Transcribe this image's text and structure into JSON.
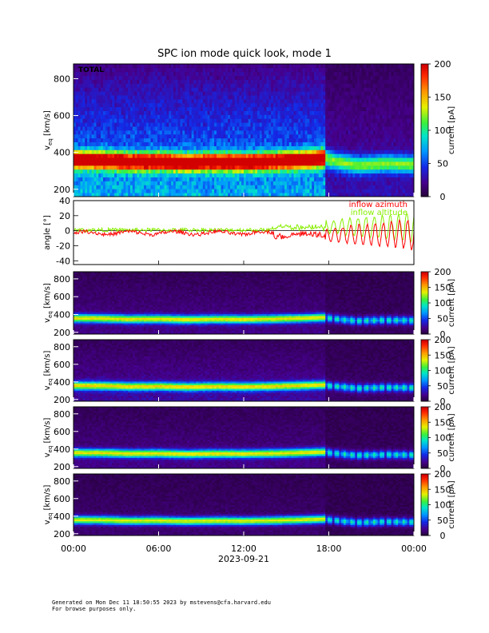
{
  "page": {
    "title": "SPC ion mode quick look, mode 1",
    "footer_line1": "Generated on Mon Dec 11 18:50:55 2023 by mstevens@cfa.harvard.edu",
    "footer_line2": "For browse purposes only."
  },
  "chart_data": [
    {
      "type": "heatmap",
      "panel": "total",
      "label": "TOTAL",
      "ylabel_main": "v",
      "ylabel_sub": "eq",
      "ylabel_unit": "[km/s]",
      "ylim": [
        160,
        880
      ],
      "yticks": [
        200,
        400,
        600,
        800
      ],
      "colorbar_label": "current [pA]",
      "colorbar_range": [
        0,
        200
      ],
      "colorbar_ticks": [
        0,
        50,
        100,
        150,
        200
      ],
      "core_speed": [
        [
          0,
          360
        ],
        [
          2,
          358
        ],
        [
          4,
          350
        ],
        [
          6,
          352
        ],
        [
          8,
          345
        ],
        [
          10,
          350
        ],
        [
          12,
          348
        ],
        [
          14,
          352
        ],
        [
          16,
          360
        ],
        [
          17.8,
          370
        ],
        [
          18,
          360
        ],
        [
          20,
          330
        ],
        [
          22,
          340
        ],
        [
          24,
          335
        ]
      ]
    },
    {
      "type": "line",
      "panel": "angle",
      "ylabel": "angle [°]",
      "ylim": [
        -45,
        40
      ],
      "yticks": [
        -40,
        -20,
        0,
        20,
        40
      ],
      "series": [
        {
          "name": "inflow azimuth",
          "color": "#ff0000"
        },
        {
          "name": "inflow altitude",
          "color": "#88ee00"
        }
      ]
    },
    {
      "type": "heatmap",
      "panel": "sub1",
      "ylabel_main": "v",
      "ylabel_sub": "eq",
      "ylabel_unit": "[km/s]",
      "ylim": [
        180,
        880
      ],
      "yticks": [
        200,
        400,
        600,
        800
      ],
      "colorbar_label": "current [pA]",
      "colorbar_range": [
        0,
        200
      ],
      "colorbar_ticks": [
        0,
        50,
        100,
        150,
        200
      ]
    },
    {
      "type": "heatmap",
      "panel": "sub2",
      "ylabel_main": "v",
      "ylabel_sub": "eq",
      "ylabel_unit": "[km/s]",
      "ylim": [
        180,
        880
      ],
      "yticks": [
        200,
        400,
        600,
        800
      ],
      "colorbar_label": "current [pA]",
      "colorbar_range": [
        0,
        200
      ],
      "colorbar_ticks": [
        0,
        50,
        100,
        150,
        200
      ]
    },
    {
      "type": "heatmap",
      "panel": "sub3",
      "ylabel_main": "v",
      "ylabel_sub": "eq",
      "ylabel_unit": "[km/s]",
      "ylim": [
        180,
        880
      ],
      "yticks": [
        200,
        400,
        600,
        800
      ],
      "colorbar_label": "current [pA]",
      "colorbar_range": [
        0,
        200
      ],
      "colorbar_ticks": [
        0,
        50,
        100,
        150,
        200
      ]
    },
    {
      "type": "heatmap",
      "panel": "sub4",
      "ylabel_main": "v",
      "ylabel_sub": "eq",
      "ylabel_unit": "[km/s]",
      "ylim": [
        180,
        880
      ],
      "yticks": [
        200,
        400,
        600,
        800
      ],
      "colorbar_label": "current [pA]",
      "colorbar_range": [
        0,
        200
      ],
      "colorbar_ticks": [
        0,
        50,
        100,
        150,
        200
      ]
    }
  ],
  "x_axis": {
    "ticks": [
      "00:00",
      "06:00",
      "12:00",
      "18:00",
      "00:00"
    ],
    "date_label": "2023-09-21"
  }
}
